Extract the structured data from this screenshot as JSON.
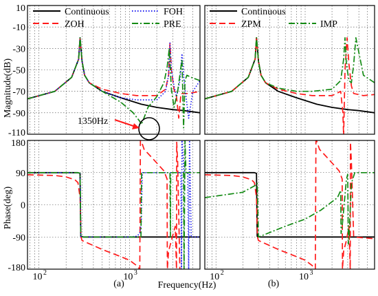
{
  "figure": {
    "ylabels": {
      "magnitude": "Magnitude(dB)",
      "phase": "Phase(deg)"
    },
    "xlabel": "Frequency(Hz)",
    "panel_labels": [
      "(a)",
      "(b)"
    ],
    "annotation": "1350Hz"
  },
  "chart_data": [
    {
      "type": "line",
      "panel": "(a) magnitude",
      "xscale": "log",
      "xlim": [
        75,
        6000
      ],
      "ylim": [
        -110,
        10
      ],
      "yticks": [
        10,
        -10,
        -30,
        -50,
        -70,
        -90,
        -110
      ],
      "xticks": [
        {
          "v": 100,
          "label": "10",
          "sup": "2"
        },
        {
          "v": 1000,
          "label": "10",
          "sup": "3"
        }
      ],
      "grid": true,
      "legend": [
        {
          "label": "Continuous",
          "color": "#000000",
          "dash": "solid"
        },
        {
          "label": "FOH",
          "color": "#1c1cf0",
          "dash": "dot"
        },
        {
          "label": "ZOH",
          "color": "#ff1a1a",
          "dash": "dash"
        },
        {
          "label": "PRE",
          "color": "#138a13",
          "dash": "dashdot"
        }
      ],
      "series": [
        {
          "name": "Continuous",
          "color": "#000000",
          "dash": "solid",
          "x": [
            75,
            150,
            230,
            275,
            285,
            300,
            320,
            360,
            500,
            800,
            1350,
            2000,
            3000,
            4000,
            6000
          ],
          "y": [
            -77,
            -70,
            -57,
            -40,
            -20,
            -42,
            -55,
            -62,
            -70,
            -76,
            -82,
            -85,
            -87,
            -88,
            -90
          ]
        },
        {
          "name": "ZOH",
          "color": "#ff1a1a",
          "dash": "dash",
          "x": [
            75,
            150,
            230,
            275,
            285,
            300,
            320,
            360,
            500,
            800,
            1200,
            2000,
            2500,
            2700,
            2800,
            2900,
            3100,
            3300,
            3500,
            3700,
            4500,
            6000
          ],
          "y": [
            -77,
            -70,
            -57,
            -40,
            -20,
            -42,
            -55,
            -62,
            -68,
            -72,
            -74,
            -74,
            -68,
            -55,
            -25,
            -50,
            -68,
            -75,
            -95,
            -72,
            -72,
            -70
          ]
        },
        {
          "name": "FOH",
          "color": "#1c1cf0",
          "dash": "dot",
          "x": [
            75,
            150,
            230,
            275,
            285,
            300,
            320,
            360,
            500,
            800,
            1200,
            2000,
            2500,
            2700,
            2800,
            2900,
            3100,
            3300,
            3600,
            3800,
            4000,
            4500,
            5000,
            6000
          ],
          "y": [
            -77,
            -70,
            -57,
            -40,
            -20,
            -42,
            -55,
            -62,
            -70,
            -76,
            -78,
            -78,
            -70,
            -55,
            -25,
            -50,
            -65,
            -75,
            -60,
            -35,
            -60,
            -95,
            -70,
            -60
          ]
        },
        {
          "name": "PRE",
          "color": "#138a13",
          "dash": "dashdot",
          "x": [
            75,
            150,
            230,
            275,
            285,
            300,
            320,
            360,
            500,
            800,
            1100,
            1300,
            1350,
            1400,
            1600,
            2000,
            2400,
            2600,
            2750,
            2820,
            2900,
            3100,
            3400,
            3600,
            3800,
            3950,
            4100,
            4300,
            4800,
            6000
          ],
          "y": [
            -77,
            -70,
            -57,
            -40,
            -20,
            -42,
            -55,
            -62,
            -70,
            -80,
            -90,
            -98,
            -101,
            -98,
            -85,
            -75,
            -62,
            -48,
            -30,
            -50,
            -68,
            -85,
            -70,
            -55,
            -40,
            -104,
            -60,
            -55,
            -57,
            -60
          ]
        }
      ]
    },
    {
      "type": "line",
      "panel": "(b) magnitude",
      "xscale": "log",
      "xlim": [
        75,
        6000
      ],
      "ylim": [
        -110,
        10
      ],
      "grid": true,
      "legend": [
        {
          "label": "Continuous",
          "color": "#000000",
          "dash": "solid"
        },
        {
          "label": "ZPM",
          "color": "#ff1a1a",
          "dash": "dash"
        },
        {
          "label": "IMP",
          "color": "#138a13",
          "dash": "dashdot"
        }
      ],
      "series": [
        {
          "name": "Continuous",
          "color": "#000000",
          "dash": "solid",
          "x": [
            75,
            150,
            230,
            275,
            285,
            300,
            320,
            360,
            500,
            800,
            1350,
            2000,
            3000,
            4000,
            6000
          ],
          "y": [
            -77,
            -70,
            -57,
            -40,
            -20,
            -42,
            -55,
            -62,
            -70,
            -76,
            -82,
            -85,
            -87,
            -88,
            -90
          ]
        },
        {
          "name": "ZPM",
          "color": "#ff1a1a",
          "dash": "dash",
          "x": [
            75,
            150,
            230,
            275,
            285,
            300,
            320,
            360,
            500,
            800,
            1200,
            2000,
            2500,
            2650,
            2700,
            2800,
            2950,
            3100,
            3300,
            3500,
            4500,
            6000
          ],
          "y": [
            -77,
            -70,
            -57,
            -40,
            -20,
            -42,
            -55,
            -62,
            -68,
            -72,
            -74,
            -74,
            -70,
            -90,
            -112,
            -50,
            -20,
            -45,
            -65,
            -72,
            -74,
            -73
          ]
        },
        {
          "name": "IMP",
          "color": "#138a13",
          "dash": "dashdot",
          "x": [
            75,
            150,
            230,
            275,
            285,
            300,
            320,
            360,
            500,
            800,
            1200,
            2000,
            2500,
            2700,
            2800,
            2900,
            3100,
            3300,
            3500,
            3700,
            4500,
            6000
          ],
          "y": [
            -77,
            -70,
            -57,
            -40,
            -20,
            -42,
            -55,
            -62,
            -67,
            -70,
            -70,
            -68,
            -60,
            -40,
            -20,
            -45,
            -60,
            -62,
            -45,
            -20,
            -55,
            -62
          ]
        }
      ]
    },
    {
      "type": "line",
      "panel": "(a) phase",
      "xscale": "log",
      "xlim": [
        75,
        6000
      ],
      "ylim": [
        -180,
        180
      ],
      "yticks": [
        180,
        90,
        0,
        -90,
        -180
      ],
      "grid": true,
      "series": [
        {
          "name": "Continuous",
          "color": "#000000",
          "dash": "solid",
          "x": [
            75,
            270,
            285,
            290,
            310,
            6000
          ],
          "y": [
            90,
            90,
            88,
            -88,
            -90,
            -90
          ]
        },
        {
          "name": "ZOH",
          "color": "#ff1a1a",
          "dash": "dash",
          "x": [
            75,
            150,
            200,
            250,
            270,
            285,
            292,
            300,
            500,
            800,
            1000,
            1200,
            1300,
            1320,
            1350,
            1450,
            1800,
            2400,
            2600,
            2620,
            2700,
            2900,
            3200,
            3300,
            3320,
            3400,
            3600
          ],
          "y": [
            84,
            82,
            78,
            70,
            62,
            20,
            -90,
            -100,
            -125,
            -145,
            -155,
            -170,
            -180,
            180,
            178,
            155,
            130,
            95,
            72,
            -180,
            -130,
            -100,
            -60,
            -180,
            175,
            120,
            -180
          ]
        },
        {
          "name": "FOH",
          "color": "#1c1cf0",
          "dash": "dot",
          "x": [
            75,
            270,
            285,
            290,
            310,
            1000,
            1200,
            1300,
            1350,
            1380,
            1400,
            2000,
            3400,
            3600,
            3700,
            3750,
            3800,
            4000,
            4200,
            4400,
            4500,
            4600,
            4800,
            6000
          ],
          "y": [
            90,
            90,
            88,
            -88,
            -90,
            -90,
            -88,
            -80,
            -50,
            80,
            90,
            90,
            90,
            90,
            90,
            -180,
            180,
            90,
            90,
            90,
            -180,
            180,
            -90,
            -90
          ]
        },
        {
          "name": "PRE",
          "color": "#138a13",
          "dash": "dashdot",
          "x": [
            75,
            270,
            285,
            290,
            310,
            1000,
            1200,
            1300,
            1340,
            1360,
            1400,
            2000,
            2700,
            2800,
            2830,
            2850,
            2900,
            3400,
            3600,
            3800,
            3950,
            4000,
            4100,
            4200,
            5000,
            6000
          ],
          "y": [
            90,
            90,
            88,
            -88,
            -90,
            -90,
            -90,
            -90,
            -90,
            90,
            90,
            90,
            90,
            90,
            -90,
            90,
            90,
            90,
            90,
            90,
            90,
            -180,
            180,
            90,
            90,
            90
          ]
        }
      ]
    },
    {
      "type": "line",
      "panel": "(b) phase",
      "xscale": "log",
      "xlim": [
        75,
        6000
      ],
      "ylim": [
        -180,
        180
      ],
      "grid": true,
      "series": [
        {
          "name": "Continuous",
          "color": "#000000",
          "dash": "solid",
          "x": [
            75,
            270,
            285,
            290,
            310,
            6000
          ],
          "y": [
            90,
            90,
            88,
            -88,
            -90,
            -90
          ]
        },
        {
          "name": "ZPM",
          "color": "#ff1a1a",
          "dash": "dash",
          "x": [
            75,
            150,
            200,
            250,
            270,
            285,
            292,
            300,
            500,
            800,
            1000,
            1200,
            1300,
            1320,
            1350,
            1450,
            1800,
            2400,
            2600,
            2620,
            2700,
            2900,
            3100,
            3200,
            3220,
            3300,
            3500,
            6000
          ],
          "y": [
            84,
            82,
            78,
            70,
            62,
            20,
            -90,
            -100,
            -125,
            -145,
            -155,
            -170,
            -180,
            180,
            178,
            155,
            130,
            95,
            72,
            -180,
            -130,
            -100,
            -60,
            -180,
            175,
            120,
            -90,
            -95
          ]
        },
        {
          "name": "IMP",
          "color": "#138a13",
          "dash": "dashdot",
          "x": [
            75,
            200,
            280,
            290,
            300,
            600,
            1000,
            1500,
            2300,
            2500,
            2530,
            2600,
            2900,
            3000,
            3050,
            3100,
            3300,
            3500,
            3600,
            4000,
            6000
          ],
          "y": [
            20,
            35,
            55,
            60,
            -90,
            -60,
            -40,
            -15,
            20,
            40,
            -80,
            -60,
            70,
            85,
            -110,
            -90,
            60,
            80,
            90,
            90,
            90
          ]
        }
      ]
    }
  ]
}
